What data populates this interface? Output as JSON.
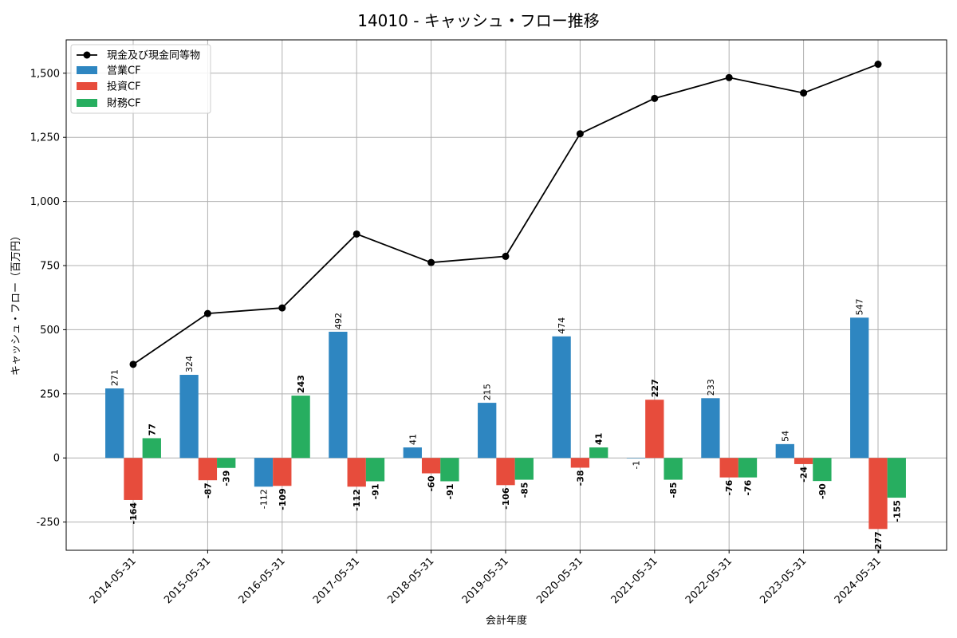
{
  "chart_data": {
    "type": "bar",
    "title": "14010 - キャッシュ・フロー推移",
    "xlabel": "会計年度",
    "ylabel": "キャッシュ・フロー（百万円）",
    "categories": [
      "2014-05-31",
      "2015-05-31",
      "2016-05-31",
      "2017-05-31",
      "2018-05-31",
      "2019-05-31",
      "2020-05-31",
      "2021-05-31",
      "2022-05-31",
      "2023-05-31",
      "2024-05-31"
    ],
    "series": [
      {
        "name": "営業CF",
        "color": "#2e86c1",
        "values": [
          271,
          324,
          -112,
          492,
          41,
          215,
          474,
          -1,
          233,
          54,
          547
        ]
      },
      {
        "name": "投資CF",
        "color": "#e74c3c",
        "values": [
          -164,
          -87,
          -109,
          -112,
          -60,
          -106,
          -38,
          227,
          -76,
          -24,
          -277
        ]
      },
      {
        "name": "財務CF",
        "color": "#27ae60",
        "values": [
          77,
          -39,
          243,
          -91,
          -91,
          -85,
          41,
          -85,
          -76,
          -90,
          -155
        ]
      }
    ],
    "line": {
      "name": "現金及び現金同等物",
      "color": "#000000",
      "values": [
        365,
        563,
        585,
        873,
        762,
        786,
        1264,
        1402,
        1483,
        1423,
        1535
      ]
    },
    "ylim": [
      -360,
      1630
    ],
    "yticks": [
      -250,
      0,
      250,
      500,
      750,
      1000,
      1250,
      1500
    ],
    "ytick_labels": [
      "-250",
      "0",
      "250",
      "500",
      "750",
      "1,000",
      "1,250",
      "1,500"
    ],
    "grid": true,
    "legend_position": "top-left"
  }
}
